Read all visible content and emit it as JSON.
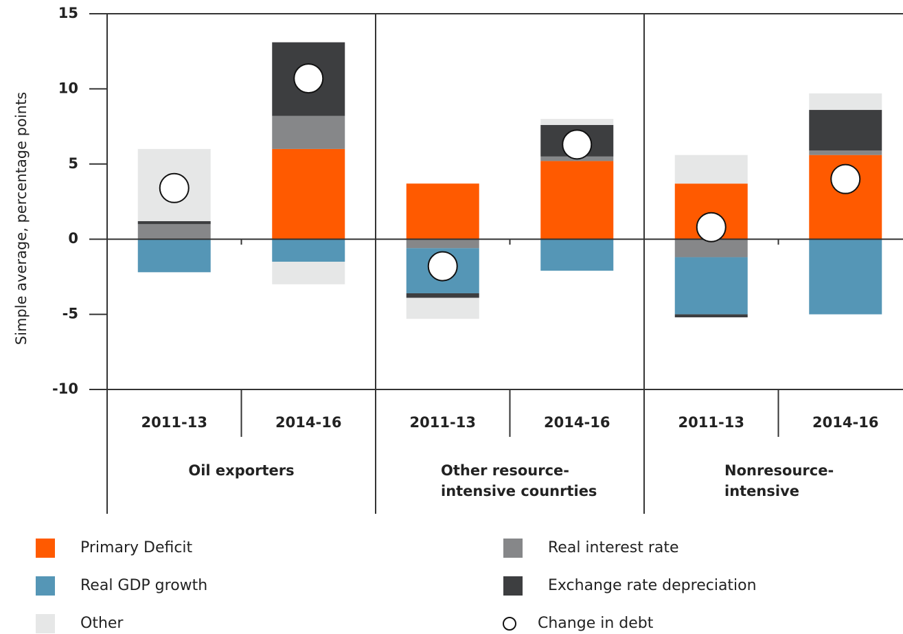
{
  "chart_data": {
    "type": "stacked_bar",
    "y_label": "Simple average, percentage points",
    "categories": [
      "2011-13",
      "2014-16",
      "2011-13",
      "2014-16",
      "2011-13",
      "2014-16"
    ],
    "groups": [
      {
        "lines": [
          "Oil exporters"
        ]
      },
      {
        "lines": [
          "Other resource-",
          "intensive counrties"
        ]
      },
      {
        "lines": [
          "Nonresource-",
          "intensive"
        ]
      }
    ],
    "series": [
      {
        "name": "Primary Deficit",
        "color": "#ff5a00",
        "values": [
          0,
          6.0,
          3.7,
          5.2,
          3.7,
          5.6
        ]
      },
      {
        "name": "Real interest rate",
        "color": "#868789",
        "values": [
          1.0,
          2.2,
          -0.6,
          0.3,
          -1.2,
          0.3
        ]
      },
      {
        "name": "Real GDP growth",
        "color": "#5596b6",
        "values": [
          -2.2,
          -1.5,
          -3.0,
          -2.1,
          -3.8,
          -5.0
        ]
      },
      {
        "name": "Exchange rate depreciation",
        "color": "#3d3e40",
        "values": [
          0.2,
          4.9,
          -0.3,
          2.1,
          -0.2,
          2.7
        ]
      },
      {
        "name": "Other",
        "color": "#e6e7e7",
        "values": [
          4.8,
          -1.5,
          -1.4,
          0.4,
          1.9,
          1.1
        ]
      }
    ],
    "markers": {
      "name": "Change in debt",
      "values": [
        3.4,
        10.7,
        -1.8,
        6.3,
        0.8,
        4.0
      ]
    },
    "ylim": [
      -10,
      15
    ],
    "yticks": [
      15,
      10,
      5,
      0,
      -5,
      -10
    ]
  }
}
